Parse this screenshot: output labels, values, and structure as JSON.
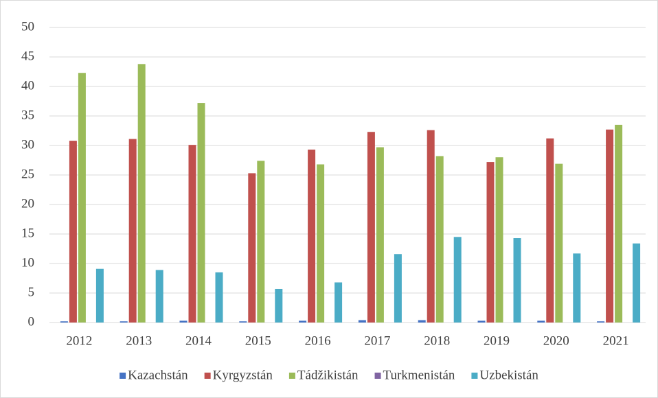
{
  "chart_data": {
    "type": "bar",
    "categories": [
      "2012",
      "2013",
      "2014",
      "2015",
      "2016",
      "2017",
      "2018",
      "2019",
      "2020",
      "2021"
    ],
    "series": [
      {
        "name": "Kazachstán",
        "color": "#4472c4",
        "values": [
          0.2,
          0.2,
          0.3,
          0.2,
          0.3,
          0.4,
          0.4,
          0.3,
          0.3,
          0.2
        ]
      },
      {
        "name": "Kyrgyzstán",
        "color": "#c0504d",
        "values": [
          30.8,
          31.1,
          30.1,
          25.3,
          29.3,
          32.3,
          32.6,
          27.2,
          31.2,
          32.7
        ]
      },
      {
        "name": "Tádžikistán",
        "color": "#9bbb59",
        "values": [
          42.3,
          43.8,
          37.2,
          27.4,
          26.8,
          29.7,
          28.2,
          28.0,
          26.9,
          33.5
        ]
      },
      {
        "name": "Turkmenistán",
        "color": "#8064a2",
        "values": [
          0,
          0,
          0,
          0,
          0,
          0,
          0,
          0,
          0,
          0
        ]
      },
      {
        "name": "Uzbekistán",
        "color": "#4bacc6",
        "values": [
          9.1,
          8.9,
          8.5,
          5.7,
          6.8,
          11.6,
          14.5,
          14.3,
          11.7,
          13.4
        ]
      }
    ],
    "ylim": [
      0,
      50
    ],
    "yticks": [
      0,
      5,
      10,
      15,
      20,
      25,
      30,
      35,
      40,
      45,
      50
    ],
    "grid": true,
    "legend": "bottom"
  }
}
